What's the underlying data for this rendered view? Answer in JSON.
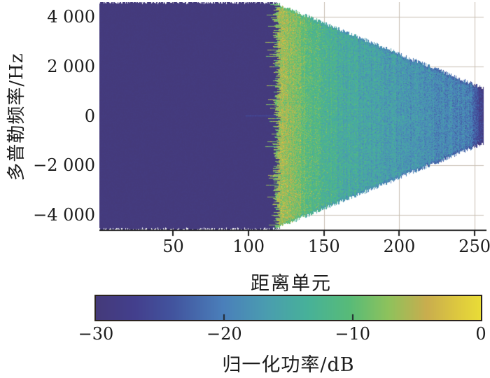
{
  "figure": {
    "background": "#ffffff",
    "text_color": "#1c1c1c",
    "grid_color": "#c9beb2",
    "axis_color": "#1a1a1a",
    "colorbar_border": "#2b241e"
  },
  "chart_data": {
    "type": "heatmap",
    "title": "",
    "xlabel": "距离单元",
    "ylabel": "多普勒频率/Hz",
    "xlim": [
      1,
      256
    ],
    "ylim": [
      -4600,
      4600
    ],
    "grid": true,
    "legend": "none",
    "x_ticks": [
      {
        "v": 50,
        "label": "50"
      },
      {
        "v": 100,
        "label": "100"
      },
      {
        "v": 150,
        "label": "150"
      },
      {
        "v": 200,
        "label": "200"
      },
      {
        "v": 250,
        "label": "250"
      }
    ],
    "y_ticks": [
      {
        "v": 4000,
        "label": "4 000"
      },
      {
        "v": 2000,
        "label": "2 000"
      },
      {
        "v": 0,
        "label": "0"
      },
      {
        "v": -2000,
        "label": "−2 000"
      },
      {
        "v": -4000,
        "label": "−4 000"
      }
    ],
    "colorbar": {
      "label": "归一化功率/dB",
      "min": -30,
      "max": 0,
      "ticks": [
        {
          "v": -30,
          "label": "−30"
        },
        {
          "v": -20,
          "label": "−20"
        },
        {
          "v": -10,
          "label": "−10"
        },
        {
          "v": 0,
          "label": "0"
        }
      ],
      "minor_tick_values": [
        -20,
        -10
      ]
    },
    "colormap_stops": [
      [
        0.0,
        "#443a7a"
      ],
      [
        0.1,
        "#433f8d"
      ],
      [
        0.2,
        "#42549e"
      ],
      [
        0.33,
        "#4a7fba"
      ],
      [
        0.44,
        "#4a9cb0"
      ],
      [
        0.55,
        "#47b199"
      ],
      [
        0.66,
        "#58bb78"
      ],
      [
        0.76,
        "#8ec25c"
      ],
      [
        0.86,
        "#c9ad4e"
      ],
      [
        0.94,
        "#ddc83f"
      ],
      [
        1.0,
        "#e9dc37"
      ]
    ],
    "field": {
      "description": "Range–Doppler map: flat clutter floor at −30 dB out to ~cell 118, then a noisy power wedge that narrows linearly with range to a low-power tip at the last cells",
      "clutter": {
        "cells": [
          1,
          118
        ],
        "power_db": -30
      },
      "clutter_edge": {
        "cell": 118.5,
        "jitter_cells": 5,
        "spike_prob": 0.18,
        "spike_len_cells": 7
      },
      "envelope": {
        "full_height_until_cell": 116,
        "slope_hz_per_cell": 25,
        "tip_half_width_hz": 1100,
        "edge_jitter_hz": 160
      },
      "profile_db": [
        [
          117,
          -9
        ],
        [
          123,
          -7.2
        ],
        [
          134,
          -8.8
        ],
        [
          143,
          -11.8
        ],
        [
          165,
          -14.6
        ],
        [
          200,
          -17
        ],
        [
          232,
          -18.8
        ],
        [
          248,
          -20.3
        ],
        [
          251,
          -24
        ],
        [
          253,
          -27
        ],
        [
          256,
          -28
        ]
      ],
      "noise_db": 4.6,
      "sparkles": [
        {
          "max_cell": 152,
          "prob": 0.1,
          "boost_db": 3.2
        },
        {
          "max_cell": 200,
          "prob": 0.04,
          "boost_db": 2.2
        }
      ],
      "edge_fringe": {
        "band_hz": 110,
        "delta_db": -2.6
      },
      "zero_doppler_streak": {
        "half_width_hz": 40,
        "from_cell": 98,
        "boost_db": 4
      }
    }
  }
}
